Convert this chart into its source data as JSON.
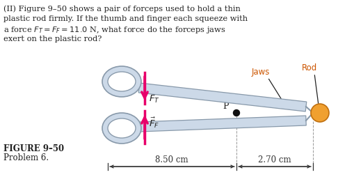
{
  "background_color": "#ffffff",
  "text_line1": "(II) Figure 9–50 shows a pair of forceps used to hold a thin",
  "text_line2": "plastic rod firmly. If the thumb and finger each squeeze with",
  "text_line3": "a force $F_T = F_F = 11.0$ N, what force do the forceps jaws",
  "text_line4": "exert on the plastic rod?",
  "figure_label": "FIGURE 9–50",
  "problem_label": "Problem 6.",
  "label_jaws": "Jaws",
  "label_rod": "Rod",
  "label_P": "P",
  "label_850": "8.50 cm",
  "label_270": "2.70 cm",
  "label_FT": "$\\vec{F}_T$",
  "label_FF": "$\\vec{F}_F$",
  "arrow_color": "#e8006a",
  "forceps_fill": "#ccd9e8",
  "forceps_edge": "#8899aa",
  "pivot_color": "#111111",
  "rod_color": "#f0a030",
  "rod_edge": "#c07010",
  "text_color": "#222222",
  "dim_color": "#333333",
  "jaws_rod_label_color": "#cc5500"
}
